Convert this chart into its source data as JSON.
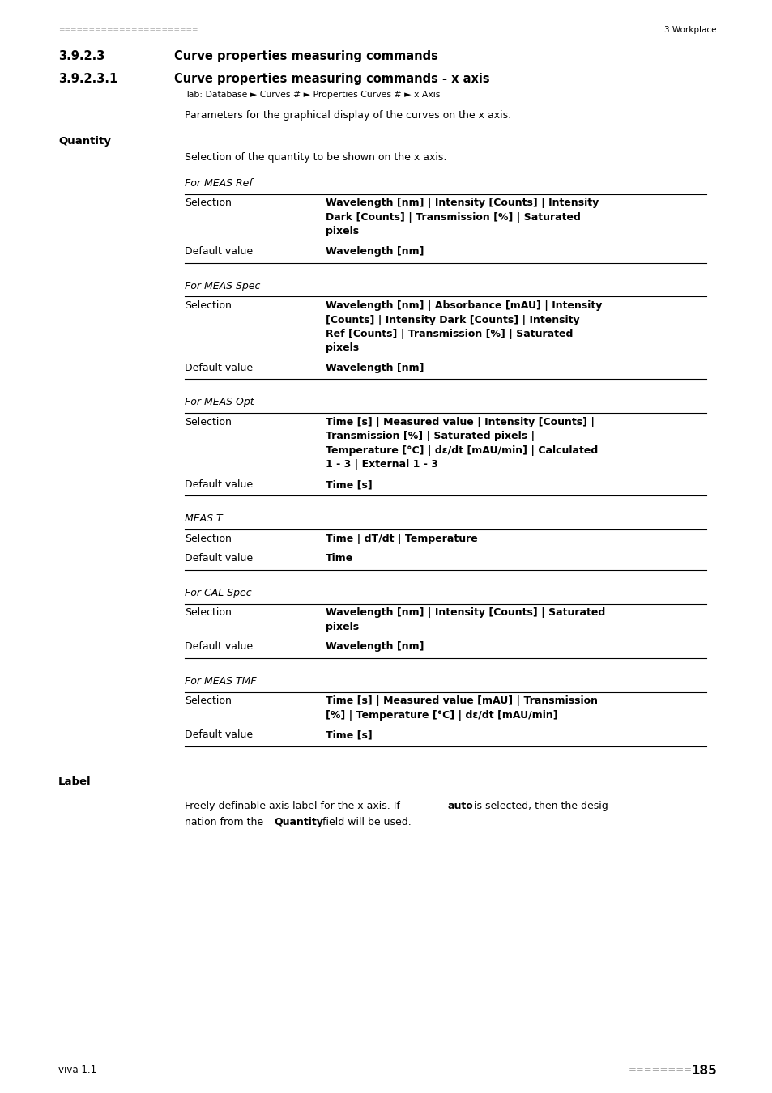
{
  "page_width": 9.54,
  "page_height": 13.5,
  "bg_color": "#ffffff",
  "header_dots": "=======================",
  "header_right": "3 Workplace",
  "footer_left": "viva 1.1",
  "footer_dots": "========",
  "footer_page": "185",
  "section_number": "3.9.2.3",
  "section_title": "Curve properties measuring commands",
  "subsection_number": "3.9.2.3.1",
  "subsection_title": "Curve properties measuring commands - x axis",
  "tab_line": "Tab: Database ► Curves # ► Properties Curves # ► x Axis",
  "intro_text": "Parameters for the graphical display of the curves on the x axis.",
  "quantity_label": "Quantity",
  "quantity_desc": "Selection of the quantity to be shown on the x axis.",
  "label_section_label": "Label",
  "tables": [
    {
      "header_italic": "For MEAS Ref",
      "rows": [
        {
          "label": "Selection",
          "value_bold": "Wavelength [nm] | Intensity [Counts] | Intensity Dark [Counts] | Transmission [%] | Saturated pixels"
        },
        {
          "label": "Default value",
          "value_bold": "Wavelength [nm]"
        }
      ]
    },
    {
      "header_italic": "For MEAS Spec",
      "rows": [
        {
          "label": "Selection",
          "value_bold": "Wavelength [nm] | Absorbance [mAU] | Intensity [Counts] | Intensity Dark [Counts] | Intensity Ref [Counts] | Transmission [%] | Saturated pixels"
        },
        {
          "label": "Default value",
          "value_bold": "Wavelength [nm]"
        }
      ]
    },
    {
      "header_italic": "For MEAS Opt",
      "rows": [
        {
          "label": "Selection",
          "value_bold": "Time [s] | Measured value | Intensity [Counts] | Transmission [%] | Saturated pixels | Temperature [°C] | dε/dt [mAU/min] | Calculated 1 - 3 | External 1 - 3"
        },
        {
          "label": "Default value",
          "value_bold": "Time [s]"
        }
      ]
    },
    {
      "header_italic": "MEAS T",
      "rows": [
        {
          "label": "Selection",
          "value_bold": "Time | dT/dt | Temperature"
        },
        {
          "label": "Default value",
          "value_bold": "Time"
        }
      ]
    },
    {
      "header_italic": "For CAL Spec",
      "rows": [
        {
          "label": "Selection",
          "value_bold": "Wavelength [nm] | Intensity [Counts] | Saturated pixels"
        },
        {
          "label": "Default value",
          "value_bold": "Wavelength [nm]"
        }
      ]
    },
    {
      "header_italic": "For MEAS TMF",
      "rows": [
        {
          "label": "Selection",
          "value_bold": "Time [s] | Measured value [mAU] | Transmission [%] | Temperature [°C] | dε/dt [mAU/min]"
        },
        {
          "label": "Default value",
          "value_bold": "Time [s]"
        }
      ]
    }
  ]
}
